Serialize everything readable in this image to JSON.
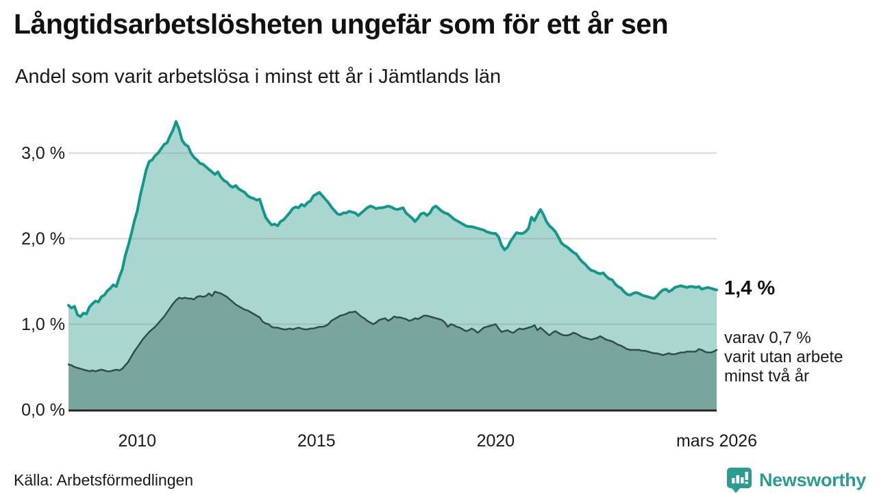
{
  "chart_data": {
    "type": "area",
    "title": "Långtidsarbetslösheten ungefär som för ett år sen",
    "subtitle": "Andel som varit arbetslösa i minst ett år i Jämtlands län",
    "unit": "%",
    "x_domain": [
      2008.083,
      2026.167
    ],
    "y_domain": [
      0,
      3.47
    ],
    "grid": "horizontal",
    "legend": "none",
    "y_ticks": [
      {
        "label": "0,0 %",
        "value": 0
      },
      {
        "label": "1,0 %",
        "value": 1
      },
      {
        "label": "2,0 %",
        "value": 2
      },
      {
        "label": "3,0 %",
        "value": 3
      }
    ],
    "x_ticks": [
      {
        "label": "2010",
        "value": 2010
      },
      {
        "label": "2015",
        "value": 2015
      },
      {
        "label": "2020",
        "value": 2020
      },
      {
        "label": "mars 2026",
        "value": 2026.167
      }
    ],
    "series": [
      {
        "name": "arbetslösa minst ett år",
        "line_color": "#12988b",
        "fill_color": "#a9d6cf",
        "line_width": 4,
        "latest_value": "1,4 %",
        "values": [
          1.22,
          1.19,
          1.21,
          1.11,
          1.09,
          1.13,
          1.12,
          1.2,
          1.24,
          1.27,
          1.26,
          1.32,
          1.34,
          1.39,
          1.42,
          1.46,
          1.44,
          1.55,
          1.64,
          1.8,
          1.92,
          2.05,
          2.2,
          2.32,
          2.5,
          2.65,
          2.8,
          2.9,
          2.92,
          2.97,
          3.0,
          3.05,
          3.1,
          3.12,
          3.2,
          3.27,
          3.37,
          3.28,
          3.15,
          3.1,
          3.08,
          3.0,
          2.95,
          2.92,
          2.88,
          2.87,
          2.84,
          2.81,
          2.78,
          2.75,
          2.78,
          2.72,
          2.68,
          2.66,
          2.62,
          2.6,
          2.62,
          2.58,
          2.56,
          2.54,
          2.5,
          2.48,
          2.47,
          2.45,
          2.46,
          2.35,
          2.25,
          2.2,
          2.16,
          2.17,
          2.15,
          2.2,
          2.22,
          2.26,
          2.3,
          2.35,
          2.37,
          2.36,
          2.4,
          2.38,
          2.42,
          2.44,
          2.5,
          2.52,
          2.54,
          2.5,
          2.46,
          2.42,
          2.37,
          2.33,
          2.29,
          2.28,
          2.3,
          2.3,
          2.32,
          2.31,
          2.3,
          2.27,
          2.3,
          2.33,
          2.36,
          2.38,
          2.37,
          2.35,
          2.36,
          2.36,
          2.37,
          2.38,
          2.37,
          2.35,
          2.34,
          2.35,
          2.36,
          2.3,
          2.27,
          2.24,
          2.2,
          2.24,
          2.29,
          2.3,
          2.27,
          2.3,
          2.36,
          2.38,
          2.35,
          2.32,
          2.3,
          2.29,
          2.26,
          2.23,
          2.21,
          2.19,
          2.17,
          2.15,
          2.14,
          2.14,
          2.13,
          2.12,
          2.11,
          2.1,
          2.08,
          2.07,
          2.06,
          2.06,
          2.02,
          1.92,
          1.87,
          1.9,
          1.97,
          2.02,
          2.07,
          2.06,
          2.06,
          2.08,
          2.12,
          2.25,
          2.21,
          2.28,
          2.34,
          2.28,
          2.2,
          2.15,
          2.12,
          2.08,
          2.02,
          1.95,
          1.92,
          1.9,
          1.87,
          1.84,
          1.82,
          1.77,
          1.73,
          1.7,
          1.66,
          1.63,
          1.62,
          1.6,
          1.59,
          1.6,
          1.56,
          1.53,
          1.52,
          1.47,
          1.44,
          1.42,
          1.38,
          1.35,
          1.34,
          1.36,
          1.37,
          1.36,
          1.34,
          1.33,
          1.32,
          1.31,
          1.3,
          1.33,
          1.37,
          1.4,
          1.41,
          1.38,
          1.4,
          1.43,
          1.44,
          1.45,
          1.44,
          1.43,
          1.44,
          1.44,
          1.43,
          1.44,
          1.41,
          1.42,
          1.43,
          1.42,
          1.41,
          1.4
        ]
      },
      {
        "name": "arbetslösa minst två år",
        "line_color": "#2f4e48",
        "fill_color": "#78a69e",
        "line_width": 2.5,
        "latest_value": "0,7 %",
        "values": [
          0.53,
          0.52,
          0.5,
          0.49,
          0.48,
          0.47,
          0.46,
          0.45,
          0.46,
          0.45,
          0.46,
          0.47,
          0.46,
          0.45,
          0.45,
          0.46,
          0.47,
          0.46,
          0.48,
          0.52,
          0.56,
          0.62,
          0.68,
          0.73,
          0.78,
          0.83,
          0.87,
          0.91,
          0.94,
          0.97,
          1.01,
          1.05,
          1.09,
          1.14,
          1.19,
          1.24,
          1.28,
          1.31,
          1.3,
          1.31,
          1.3,
          1.3,
          1.29,
          1.32,
          1.33,
          1.32,
          1.33,
          1.36,
          1.33,
          1.38,
          1.37,
          1.36,
          1.34,
          1.32,
          1.29,
          1.26,
          1.23,
          1.21,
          1.19,
          1.17,
          1.16,
          1.14,
          1.12,
          1.1,
          1.08,
          1.03,
          1.01,
          1.0,
          0.97,
          0.96,
          0.96,
          0.95,
          0.94,
          0.94,
          0.95,
          0.94,
          0.95,
          0.96,
          0.95,
          0.94,
          0.94,
          0.95,
          0.95,
          0.96,
          0.97,
          0.97,
          0.98,
          1.0,
          1.04,
          1.06,
          1.08,
          1.1,
          1.11,
          1.12,
          1.14,
          1.14,
          1.15,
          1.12,
          1.09,
          1.07,
          1.04,
          1.02,
          1.0,
          1.02,
          1.05,
          1.06,
          1.07,
          1.04,
          1.06,
          1.09,
          1.08,
          1.08,
          1.07,
          1.06,
          1.04,
          1.05,
          1.07,
          1.06,
          1.08,
          1.1,
          1.1,
          1.09,
          1.08,
          1.07,
          1.06,
          1.05,
          1.02,
          0.97,
          1.0,
          0.99,
          0.97,
          0.96,
          0.94,
          0.92,
          0.93,
          0.95,
          0.93,
          0.9,
          0.93,
          0.96,
          0.97,
          0.98,
          0.99,
          1.0,
          0.95,
          0.91,
          0.92,
          0.93,
          0.91,
          0.9,
          0.93,
          0.95,
          0.94,
          0.95,
          0.96,
          0.97,
          0.99,
          0.93,
          0.96,
          0.93,
          0.9,
          0.87,
          0.9,
          0.92,
          0.9,
          0.88,
          0.87,
          0.87,
          0.88,
          0.9,
          0.89,
          0.87,
          0.85,
          0.84,
          0.83,
          0.82,
          0.83,
          0.84,
          0.86,
          0.84,
          0.82,
          0.81,
          0.8,
          0.78,
          0.76,
          0.75,
          0.73,
          0.71,
          0.7,
          0.7,
          0.7,
          0.7,
          0.69,
          0.69,
          0.68,
          0.67,
          0.66,
          0.66,
          0.65,
          0.64,
          0.65,
          0.66,
          0.65,
          0.65,
          0.66,
          0.67,
          0.67,
          0.68,
          0.68,
          0.68,
          0.68,
          0.71,
          0.7,
          0.68,
          0.67,
          0.67,
          0.68,
          0.7
        ]
      }
    ],
    "annotations": {
      "total_label": "1,4 %",
      "detail_label": "varav 0,7 %\nvarit utan arbete\nminst två år"
    },
    "colors": {
      "grid": "#dfe1e8",
      "baseline": "#2b2b2b",
      "accent_teal": "#12988b",
      "logo_teal": "#2a9c92"
    }
  },
  "footer": {
    "source": "Källa: Arbetsförmedlingen",
    "logo_text": "Newsworthy"
  }
}
